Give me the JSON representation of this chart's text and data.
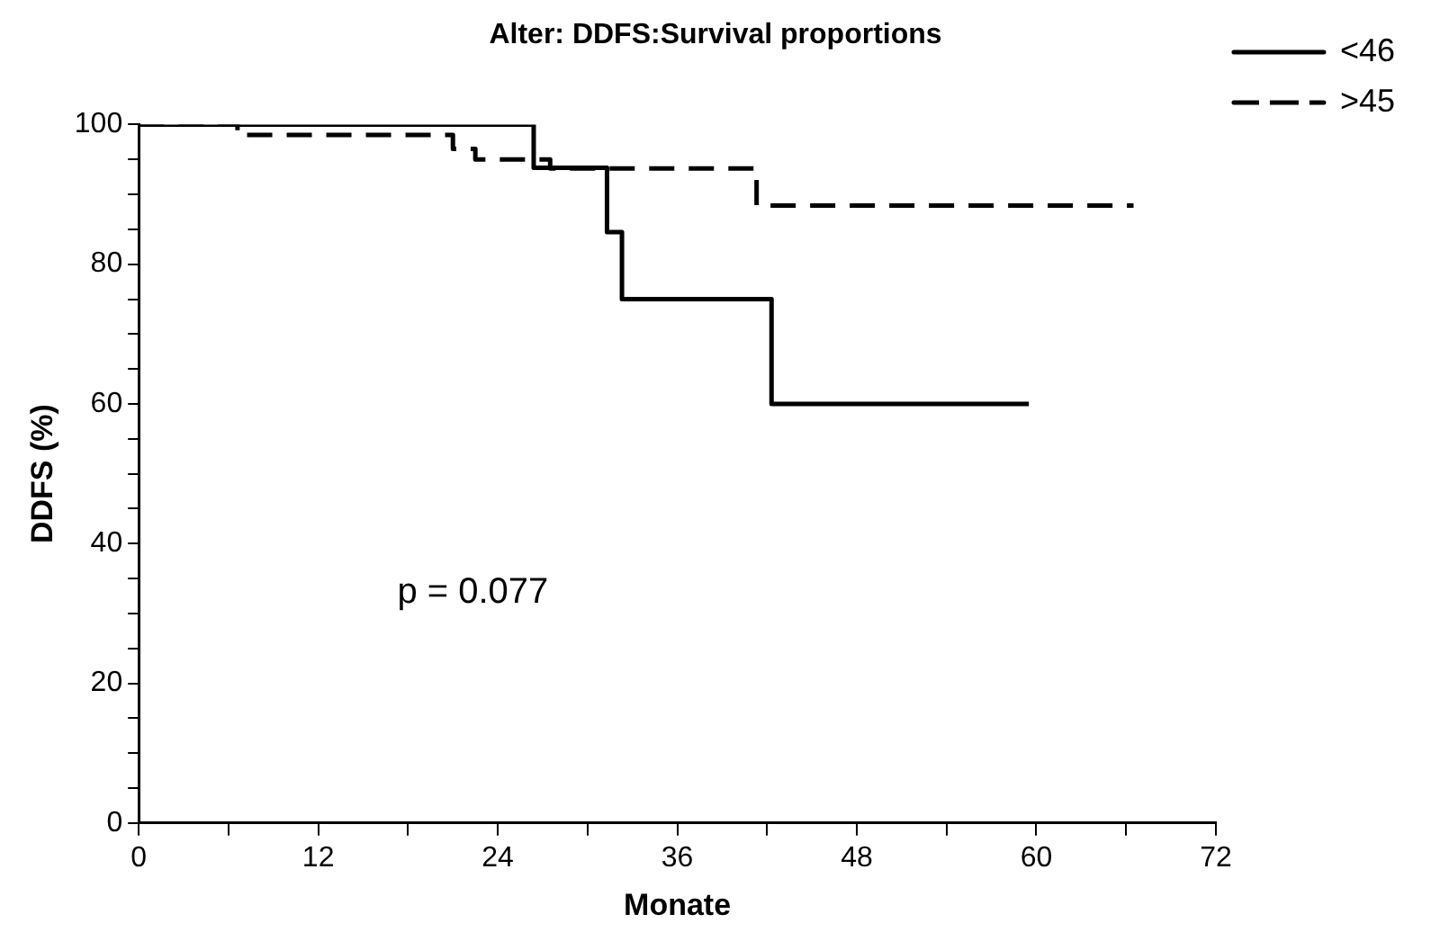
{
  "chart_data": {
    "type": "step",
    "title": "Alter: DDFS:Survival proportions",
    "xlabel": "Monate",
    "ylabel": "DDFS (%)",
    "series": [
      {
        "name": "<46",
        "color": "#000000",
        "line_style": "solid",
        "x": [
          0,
          26.4,
          31.3,
          32.3,
          42.3,
          59.5
        ],
        "values": [
          100,
          93.8,
          84.6,
          75,
          60,
          60
        ]
      },
      {
        "name": ">45",
        "color": "#000000",
        "line_style": "dashed",
        "x": [
          0,
          6.6,
          21,
          22.5,
          27.5,
          41.3,
          66.5
        ],
        "values": [
          100,
          98.5,
          96.5,
          95,
          93.7,
          88.4,
          88.4
        ]
      }
    ],
    "xlim": [
      0,
      72
    ],
    "xticks": [
      0,
      {
        "value": 6,
        "label": null
      },
      12,
      {
        "value": 18,
        "label": null
      },
      24,
      {
        "value": 30,
        "label": null
      },
      36,
      {
        "value": 42,
        "label": null
      },
      48,
      {
        "value": 54,
        "label": null
      },
      60,
      {
        "value": 66,
        "label": null
      },
      72
    ],
    "ylim": [
      0,
      100
    ],
    "yticks": [
      0,
      {
        "value": 5,
        "label": null
      },
      {
        "value": 10,
        "label": null
      },
      {
        "value": 15,
        "label": null
      },
      20,
      {
        "value": 25,
        "label": null
      },
      {
        "value": 30,
        "label": null
      },
      {
        "value": 35,
        "label": null
      },
      40,
      {
        "value": 45,
        "label": null
      },
      {
        "value": 50,
        "label": null
      },
      {
        "value": 55,
        "label": null
      },
      60,
      {
        "value": 65,
        "label": null
      },
      {
        "value": 70,
        "label": null
      },
      {
        "value": 75,
        "label": null
      },
      80,
      {
        "value": 85,
        "label": null
      },
      {
        "value": 90,
        "label": null
      },
      {
        "value": 95,
        "label": null
      },
      100
    ],
    "grid": false,
    "legend": "top right",
    "marker": "none",
    "annotations": [
      "p = 0.077"
    ]
  }
}
